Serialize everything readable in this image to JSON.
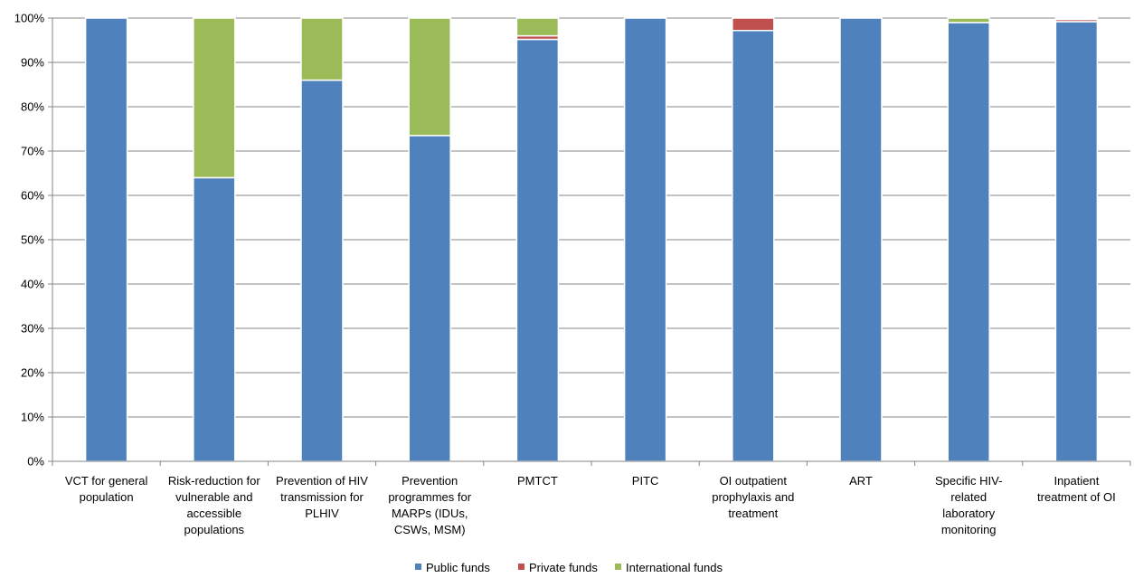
{
  "chart_data": {
    "type": "bar",
    "stacked": true,
    "percent": true,
    "categories": [
      [
        "VCT for general",
        "population"
      ],
      [
        "Risk-reduction for",
        "vulnerable and",
        "accessible",
        "populations"
      ],
      [
        "Prevention of HIV",
        "transmission for",
        "PLHIV"
      ],
      [
        "Prevention",
        "programmes for",
        "MARPs (IDUs,",
        "CSWs, MSM)"
      ],
      [
        "PMTCT"
      ],
      [
        "PITC"
      ],
      [
        "OI outpatient",
        "prophylaxis and",
        "treatment"
      ],
      [
        "ART"
      ],
      [
        "Specific HIV-",
        "related",
        "laboratory",
        "monitoring"
      ],
      [
        "Inpatient",
        "treatment of OI"
      ]
    ],
    "series": [
      {
        "name": "Public funds",
        "color": "#4F81BD",
        "values": [
          100,
          64,
          86,
          73.5,
          95.2,
          100,
          97.2,
          100,
          99,
          99.2
        ]
      },
      {
        "name": "Private funds",
        "color": "#C0504D",
        "values": [
          0,
          0,
          0,
          0,
          0.8,
          0,
          2.8,
          0,
          0,
          0.5
        ]
      },
      {
        "name": "International funds",
        "color": "#9BBB59",
        "values": [
          0,
          36,
          14,
          26.5,
          4,
          0,
          0,
          0,
          1,
          0.3
        ]
      }
    ],
    "ylim": [
      0,
      100
    ],
    "yticks": [
      "0%",
      "10%",
      "20%",
      "30%",
      "40%",
      "50%",
      "60%",
      "70%",
      "80%",
      "90%",
      "100%"
    ],
    "grid": true,
    "legend_position": "bottom"
  }
}
